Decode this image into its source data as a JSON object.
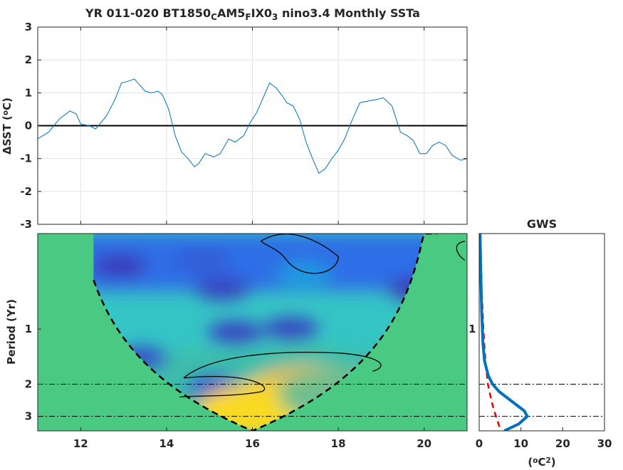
{
  "chart_data": [
    {
      "type": "line",
      "title_parts": [
        {
          "t": "YR 011-020 BT1850",
          "sub": false
        },
        {
          "t": "C",
          "sub": true
        },
        {
          "t": "AM5",
          "sub": false
        },
        {
          "t": "F",
          "sub": true
        },
        {
          "t": "IX0",
          "sub": false
        },
        {
          "t": "3",
          "sub": true
        },
        {
          "t": " nino3.4 Monthly SSTa",
          "sub": false
        }
      ],
      "ylabel_parts": [
        {
          "t": "ΔSST (",
          "sup": false
        },
        {
          "t": "o",
          "sup": true
        },
        {
          "t": "C)",
          "sup": false
        }
      ],
      "xlim": [
        11,
        21
      ],
      "ylim": [
        -3,
        3
      ],
      "yticks": [
        3,
        2,
        1,
        0,
        -1,
        -2,
        -3
      ],
      "xticks": [
        12,
        14,
        16,
        18,
        20
      ],
      "grid": true,
      "series": [
        {
          "color": "#0072bd",
          "x": [
            11.0,
            11.25,
            11.5,
            11.75,
            11.9,
            12.0,
            12.2,
            12.35,
            12.6,
            12.8,
            12.95,
            13.1,
            13.25,
            13.4,
            13.5,
            13.65,
            13.8,
            13.9,
            14.05,
            14.2,
            14.35,
            14.5,
            14.65,
            14.75,
            14.9,
            15.1,
            15.25,
            15.45,
            15.6,
            15.8,
            15.95,
            16.1,
            16.25,
            16.4,
            16.55,
            16.7,
            16.8,
            16.95,
            17.1,
            17.25,
            17.4,
            17.55,
            17.7,
            17.85,
            18.0,
            18.15,
            18.3,
            18.5,
            18.7,
            18.9,
            19.05,
            19.25,
            19.45,
            19.6,
            19.75,
            19.9,
            20.05,
            20.2,
            20.35,
            20.5,
            20.65,
            20.85,
            21.0
          ],
          "y": [
            -0.4,
            -0.2,
            0.2,
            0.45,
            0.35,
            0.05,
            0.0,
            -0.1,
            0.3,
            0.8,
            1.3,
            1.35,
            1.42,
            1.2,
            1.05,
            1.0,
            1.05,
            0.95,
            0.5,
            -0.3,
            -0.8,
            -1.0,
            -1.25,
            -1.15,
            -0.85,
            -0.95,
            -0.85,
            -0.4,
            -0.5,
            -0.3,
            0.1,
            0.4,
            0.85,
            1.3,
            1.15,
            0.9,
            0.7,
            0.6,
            0.2,
            -0.5,
            -1.0,
            -1.45,
            -1.3,
            -1.0,
            -0.75,
            -0.4,
            0.1,
            0.7,
            0.75,
            0.8,
            0.85,
            0.6,
            -0.2,
            -0.3,
            -0.45,
            -0.85,
            -0.85,
            -0.6,
            -0.5,
            -0.6,
            -0.9,
            -1.05,
            -1.0
          ]
        }
      ],
      "zero_line": 0
    },
    {
      "type": "heatmap",
      "ylabel": "Period (Yr)",
      "xlim": [
        11,
        21
      ],
      "xticks": [
        12,
        14,
        16,
        18,
        20
      ],
      "ylim_period": [
        0.3,
        3.6
      ],
      "yscale": "log",
      "yticks": [
        1,
        2,
        3
      ],
      "dashdot_lines_period": [
        2,
        3
      ],
      "cone_of_influence": "dashed",
      "blobs": [
        {
          "x": 12.9,
          "period": 0.45,
          "power": 0.05
        },
        {
          "x": 14.8,
          "period": 0.42,
          "power": 0.15
        },
        {
          "x": 15.3,
          "period": 0.6,
          "power": 0.08
        },
        {
          "x": 17.2,
          "period": 0.5,
          "power": 0.35
        },
        {
          "x": 19.8,
          "period": 0.6,
          "power": 0.05
        },
        {
          "x": 15.6,
          "period": 1.05,
          "power": 0.08
        },
        {
          "x": 16.9,
          "period": 1.0,
          "power": 0.08
        },
        {
          "x": 13.4,
          "period": 1.45,
          "power": 0.1
        },
        {
          "x": 15.1,
          "period": 2.05,
          "power": 0.12
        },
        {
          "x": 17.1,
          "period": 1.7,
          "power": 0.55
        },
        {
          "x": 17.3,
          "period": 2.2,
          "power": 0.7
        },
        {
          "x": 16.2,
          "period": 2.8,
          "power": 0.95
        },
        {
          "x": 18.1,
          "period": 2.3,
          "power": 0.6
        }
      ],
      "contours": 2
    },
    {
      "type": "line",
      "title": "GWS",
      "xlabel_parts": [
        {
          "t": "(",
          "sup": false
        },
        {
          "t": "o",
          "sup": true
        },
        {
          "t": "C",
          "sup": false
        },
        {
          "t": "2",
          "sup": true
        },
        {
          "t": ")",
          "sup": false
        }
      ],
      "xlim": [
        0,
        30
      ],
      "xticks": [
        0,
        10,
        20,
        30
      ],
      "yscale": "log",
      "dashdot_lines_period": [
        2,
        3
      ],
      "series": [
        {
          "style": "solid",
          "color": "#0072bd",
          "period": [
            0.3,
            0.5,
            0.8,
            1.2,
            1.5,
            1.8,
            2.0,
            2.2,
            2.5,
            2.8,
            3.0,
            3.3,
            3.6
          ],
          "power": [
            0.2,
            0.4,
            0.6,
            0.9,
            1.3,
            2.2,
            3.2,
            4.8,
            8.0,
            10.8,
            11.5,
            9.5,
            6.0
          ]
        },
        {
          "style": "dashed",
          "color": "#e60000",
          "period": [
            0.3,
            0.6,
            1.0,
            1.5,
            2.0,
            2.5,
            3.0,
            3.6
          ],
          "power": [
            0.3,
            0.6,
            1.0,
            1.5,
            2.1,
            3.0,
            4.0,
            5.2
          ]
        }
      ]
    }
  ]
}
